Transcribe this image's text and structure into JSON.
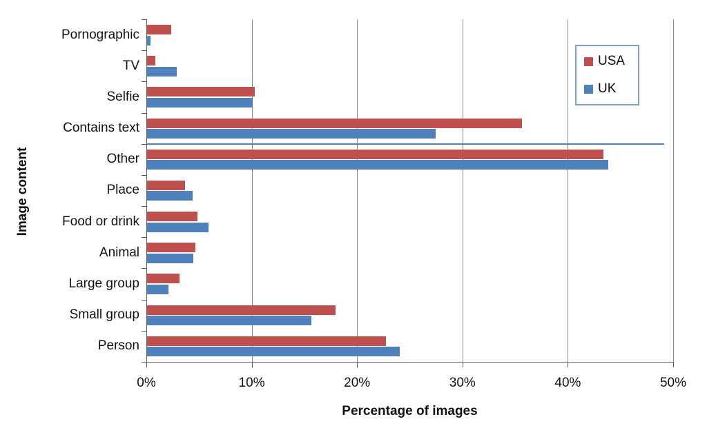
{
  "chart_data": {
    "type": "bar",
    "orientation": "horizontal",
    "title": "",
    "xlabel": "Percentage of images",
    "ylabel": "Image content",
    "xlim": [
      0,
      50
    ],
    "x_tick_values": [
      0,
      10,
      20,
      30,
      40,
      50
    ],
    "x_tick_labels": [
      "0%",
      "10%",
      "20%",
      "30%",
      "40%",
      "50%"
    ],
    "grid": true,
    "categories": [
      "Pornographic",
      "TV",
      "Selfie",
      "Contains text",
      "Other",
      "Place",
      "Food or drink",
      "Animal",
      "Large group",
      "Small group",
      "Person"
    ],
    "series": [
      {
        "name": "USA",
        "color": "#C0504D",
        "values": [
          2.3,
          0.8,
          10.2,
          35.6,
          43.3,
          3.6,
          4.8,
          4.6,
          3.1,
          17.9,
          22.7
        ]
      },
      {
        "name": "UK",
        "color": "#4F81BD",
        "values": [
          0.3,
          2.8,
          10.0,
          27.4,
          43.8,
          4.3,
          5.8,
          4.4,
          2.0,
          15.6,
          24.0
        ]
      }
    ],
    "legend": {
      "position": "top-right",
      "entries": [
        "USA",
        "UK"
      ],
      "border_color": "#7BA0CD"
    },
    "stray_line": {
      "description": "thin horizontal line artifact at the Contains text / Other band boundary",
      "value": 49.1,
      "color": "#4F81BD",
      "boundary_index": 4
    },
    "colors": {
      "gridline": "#898989",
      "axis": "#595959",
      "text": "#111111"
    }
  }
}
